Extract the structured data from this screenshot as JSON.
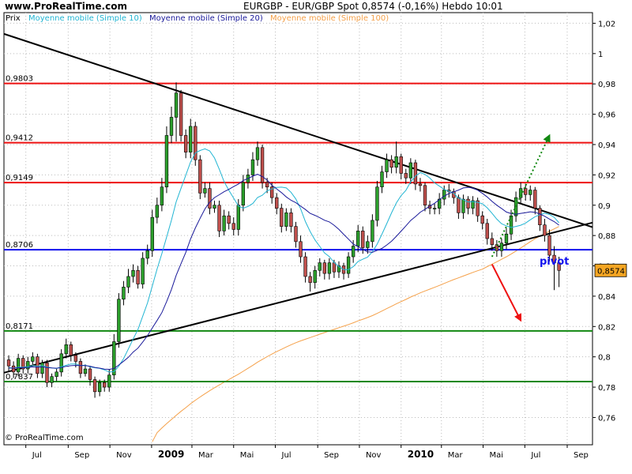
{
  "header": {
    "site": "www.ProRealTime.com",
    "instrument": "EURGBP - EUR/GBP Spot   0,8574 (-0,16%)   Hebdo  10:01"
  },
  "legend": {
    "price": "Prix",
    "sma10": "Moyenne mobile (Simple 10)",
    "sma20": "Moyenne mobile (Simple 20)",
    "sma100": "Moyenne mobile (Simple 100)"
  },
  "copyright": "© ProRealTime.com",
  "colors": {
    "up": "#2ca02c",
    "down": "#c0504d",
    "sma10": "#22b5d3",
    "sma20": "#1a1a9a",
    "sma100": "#f5a14a",
    "resistance": "#ee1111",
    "support": "#118811",
    "pivot": "#1111ee",
    "trend": "#000000",
    "current_badge": "#f5a623"
  },
  "chart_data": {
    "type": "candlestick",
    "title": "EURGBP - EUR/GBP Spot",
    "timeframe": "Hebdo",
    "last_price_label": "0,8574",
    "change_label": "(-0,16%)",
    "ylim": [
      0.742,
      1.027
    ],
    "y_ticks": [
      0.76,
      0.78,
      0.8,
      0.82,
      0.84,
      0.86,
      0.88,
      0.9,
      0.92,
      0.94,
      0.96,
      0.98,
      1.0,
      1.02
    ],
    "y_tick_labels": [
      "0,76",
      "0,78",
      "0,8",
      "0,82",
      "0,84",
      "0,86",
      "0,88",
      "0,9",
      "0,92",
      "0,94",
      "0,96",
      "0,98",
      "1",
      "1,02"
    ],
    "x_ticks": [
      "Jul",
      "Sep",
      "Nov",
      "2009",
      "Mar",
      "Mai",
      "Jul",
      "Sep",
      "Nov",
      "2010",
      "Mar",
      "Mai",
      "Jul",
      "Sep"
    ],
    "x_tick_dates": [
      "2008-07-01",
      "2008-09-01",
      "2008-11-01",
      "2009-01-01",
      "2009-03-01",
      "2009-05-01",
      "2009-07-01",
      "2009-09-01",
      "2009-11-01",
      "2010-01-01",
      "2010-03-01",
      "2010-05-01",
      "2010-07-01",
      "2010-09-01"
    ],
    "x_range": [
      "2008-05-30",
      "2010-10-08"
    ],
    "horizontal_levels": [
      {
        "value": 0.9803,
        "label": "0,9803",
        "role": "resistance"
      },
      {
        "value": 0.9412,
        "label": "0,9412",
        "role": "resistance"
      },
      {
        "value": 0.9149,
        "label": "0,9149",
        "role": "resistance"
      },
      {
        "value": 0.8706,
        "label": "0,8706",
        "role": "pivot"
      },
      {
        "value": 0.8171,
        "label": "0,8171",
        "role": "support"
      },
      {
        "value": 0.7837,
        "label": "0,7837",
        "role": "support"
      }
    ],
    "trendlines": [
      {
        "name": "upper",
        "from": [
          "2008-05-30",
          1.013
        ],
        "to": [
          "2010-10-08",
          0.8855
        ]
      },
      {
        "name": "lower",
        "from": [
          "2008-05-30",
          0.7895
        ],
        "to": [
          "2010-10-08",
          0.8885
        ]
      }
    ],
    "pivot_label": "pivot",
    "arrows": [
      {
        "style": "dotted",
        "color": "support",
        "from": [
          "2010-05-14",
          0.866
        ],
        "to": [
          "2010-08-06",
          0.946
        ]
      },
      {
        "style": "solid",
        "color": "resistance",
        "from": [
          "2010-05-14",
          0.861
        ],
        "to": [
          "2010-06-25",
          0.824
        ]
      }
    ],
    "series": [
      {
        "name": "Prix",
        "kind": "ohlc_weekly",
        "start": "2008-06-06",
        "step_days": 7,
        "close": [
          0.794,
          0.79,
          0.799,
          0.792,
          0.797,
          0.8,
          0.789,
          0.796,
          0.783,
          0.787,
          0.79,
          0.802,
          0.808,
          0.801,
          0.797,
          0.789,
          0.792,
          0.785,
          0.777,
          0.783,
          0.78,
          0.788,
          0.81,
          0.838,
          0.846,
          0.853,
          0.857,
          0.848,
          0.865,
          0.87,
          0.892,
          0.9,
          0.912,
          0.946,
          0.958,
          0.974,
          0.946,
          0.935,
          0.952,
          0.93,
          0.908,
          0.911,
          0.898,
          0.9,
          0.883,
          0.893,
          0.888,
          0.884,
          0.9,
          0.915,
          0.92,
          0.93,
          0.938,
          0.915,
          0.912,
          0.905,
          0.898,
          0.886,
          0.895,
          0.886,
          0.876,
          0.866,
          0.853,
          0.849,
          0.857,
          0.862,
          0.855,
          0.862,
          0.856,
          0.86,
          0.855,
          0.866,
          0.873,
          0.883,
          0.872,
          0.876,
          0.89,
          0.912,
          0.922,
          0.93,
          0.925,
          0.932,
          0.921,
          0.918,
          0.928,
          0.914,
          0.913,
          0.9,
          0.898,
          0.898,
          0.904,
          0.91,
          0.909,
          0.905,
          0.895,
          0.904,
          0.898,
          0.903,
          0.893,
          0.888,
          0.878,
          0.874,
          0.87,
          0.875,
          0.881,
          0.893,
          0.905,
          0.911,
          0.907,
          0.91,
          0.898,
          0.887,
          0.88,
          0.867,
          0.862,
          0.857
        ],
        "open": [
          0.798,
          0.794,
          0.79,
          0.799,
          0.792,
          0.797,
          0.8,
          0.789,
          0.796,
          0.783,
          0.787,
          0.79,
          0.802,
          0.808,
          0.801,
          0.797,
          0.789,
          0.792,
          0.785,
          0.777,
          0.783,
          0.78,
          0.788,
          0.81,
          0.838,
          0.846,
          0.853,
          0.857,
          0.848,
          0.865,
          0.87,
          0.892,
          0.9,
          0.912,
          0.946,
          0.958,
          0.974,
          0.946,
          0.935,
          0.952,
          0.93,
          0.908,
          0.911,
          0.898,
          0.9,
          0.883,
          0.893,
          0.888,
          0.884,
          0.9,
          0.915,
          0.92,
          0.93,
          0.938,
          0.915,
          0.912,
          0.905,
          0.898,
          0.886,
          0.895,
          0.886,
          0.876,
          0.866,
          0.853,
          0.849,
          0.857,
          0.862,
          0.855,
          0.862,
          0.856,
          0.86,
          0.855,
          0.866,
          0.873,
          0.883,
          0.872,
          0.876,
          0.89,
          0.912,
          0.922,
          0.93,
          0.925,
          0.932,
          0.921,
          0.918,
          0.928,
          0.914,
          0.913,
          0.9,
          0.898,
          0.898,
          0.904,
          0.91,
          0.909,
          0.905,
          0.895,
          0.904,
          0.898,
          0.903,
          0.893,
          0.888,
          0.878,
          0.874,
          0.87,
          0.875,
          0.881,
          0.893,
          0.905,
          0.911,
          0.907,
          0.91,
          0.898,
          0.887,
          0.88,
          0.867,
          0.862
        ],
        "high": [
          0.801,
          0.797,
          0.802,
          0.801,
          0.8,
          0.803,
          0.802,
          0.798,
          0.798,
          0.789,
          0.792,
          0.805,
          0.812,
          0.81,
          0.803,
          0.799,
          0.795,
          0.794,
          0.787,
          0.785,
          0.785,
          0.792,
          0.815,
          0.842,
          0.85,
          0.858,
          0.861,
          0.86,
          0.869,
          0.874,
          0.897,
          0.905,
          0.918,
          0.952,
          0.965,
          0.981,
          0.976,
          0.95,
          0.957,
          0.955,
          0.933,
          0.915,
          0.915,
          0.903,
          0.903,
          0.897,
          0.896,
          0.892,
          0.904,
          0.92,
          0.924,
          0.935,
          0.942,
          0.94,
          0.918,
          0.915,
          0.908,
          0.901,
          0.898,
          0.898,
          0.889,
          0.88,
          0.869,
          0.856,
          0.86,
          0.865,
          0.864,
          0.865,
          0.864,
          0.863,
          0.862,
          0.869,
          0.877,
          0.887,
          0.886,
          0.88,
          0.894,
          0.916,
          0.926,
          0.934,
          0.933,
          0.942,
          0.934,
          0.924,
          0.931,
          0.93,
          0.918,
          0.915,
          0.903,
          0.901,
          0.908,
          0.913,
          0.914,
          0.911,
          0.907,
          0.907,
          0.906,
          0.906,
          0.905,
          0.896,
          0.891,
          0.882,
          0.877,
          0.878,
          0.885,
          0.897,
          0.909,
          0.915,
          0.914,
          0.913,
          0.912,
          0.9,
          0.891,
          0.884,
          0.873,
          0.866
        ],
        "low": [
          0.79,
          0.786,
          0.787,
          0.789,
          0.789,
          0.795,
          0.786,
          0.786,
          0.78,
          0.78,
          0.784,
          0.787,
          0.799,
          0.797,
          0.793,
          0.786,
          0.787,
          0.781,
          0.773,
          0.774,
          0.777,
          0.777,
          0.785,
          0.806,
          0.834,
          0.842,
          0.849,
          0.845,
          0.845,
          0.861,
          0.866,
          0.888,
          0.896,
          0.908,
          0.941,
          0.942,
          0.942,
          0.931,
          0.931,
          0.926,
          0.904,
          0.905,
          0.894,
          0.895,
          0.879,
          0.88,
          0.884,
          0.88,
          0.88,
          0.896,
          0.911,
          0.916,
          0.926,
          0.911,
          0.908,
          0.901,
          0.894,
          0.882,
          0.883,
          0.882,
          0.872,
          0.862,
          0.849,
          0.843,
          0.845,
          0.853,
          0.851,
          0.851,
          0.852,
          0.852,
          0.851,
          0.852,
          0.862,
          0.869,
          0.868,
          0.868,
          0.872,
          0.886,
          0.908,
          0.918,
          0.921,
          0.921,
          0.917,
          0.914,
          0.914,
          0.91,
          0.909,
          0.896,
          0.894,
          0.894,
          0.894,
          0.9,
          0.905,
          0.901,
          0.891,
          0.891,
          0.894,
          0.894,
          0.889,
          0.884,
          0.874,
          0.87,
          0.866,
          0.866,
          0.871,
          0.877,
          0.889,
          0.901,
          0.903,
          0.903,
          0.894,
          0.883,
          0.876,
          0.863,
          0.844,
          0.846
        ]
      },
      {
        "name": "Moyenne mobile (Simple 10)",
        "kind": "sma",
        "period": 10,
        "base": "close"
      },
      {
        "name": "Moyenne mobile (Simple 20)",
        "kind": "sma",
        "period": 20,
        "base": "close"
      },
      {
        "name": "Moyenne mobile (Simple 100)",
        "kind": "sma",
        "period": 100,
        "base": "close",
        "start_value": 0.744,
        "start_date": "2009-01-02"
      }
    ]
  }
}
